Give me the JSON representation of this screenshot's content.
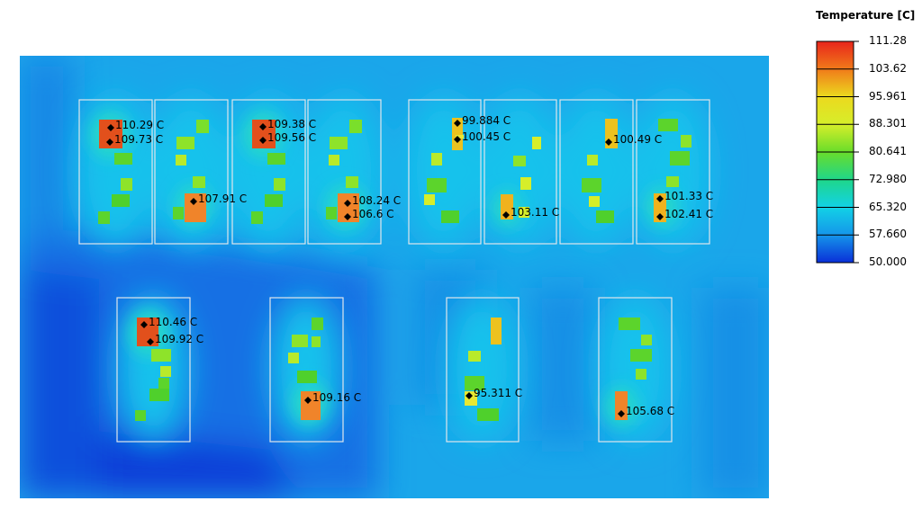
{
  "legend": {
    "title": "Temperature [C]",
    "ticks": [
      "111.28",
      "103.62",
      "95.961",
      "88.301",
      "80.641",
      "72.980",
      "65.320",
      "57.660",
      "50.000"
    ],
    "colors": [
      "#e8251b",
      "#f07a1a",
      "#ecd91e",
      "#d6ee2a",
      "#69dd2a",
      "#1fd68a",
      "#12d2e6",
      "#1596ea",
      "#0a2fd8"
    ]
  },
  "background_color": "#1aa6ea",
  "probes": [
    {
      "label": "110.29 C"
    },
    {
      "label": "109.73 C"
    },
    {
      "label": "107.91 C"
    },
    {
      "label": "109.38 C"
    },
    {
      "label": "109.56 C"
    },
    {
      "label": "108.24 C"
    },
    {
      "label": "106.6 C"
    },
    {
      "label": "99.884 C"
    },
    {
      "label": "100.45 C"
    },
    {
      "label": "103.11 C"
    },
    {
      "label": "100.49 C"
    },
    {
      "label": "101.33 C"
    },
    {
      "label": "102.41 C"
    },
    {
      "label": "110.46 C"
    },
    {
      "label": "109.92 C"
    },
    {
      "label": "109.16 C"
    },
    {
      "label": "95.311 C"
    },
    {
      "label": "105.68 C"
    }
  ]
}
